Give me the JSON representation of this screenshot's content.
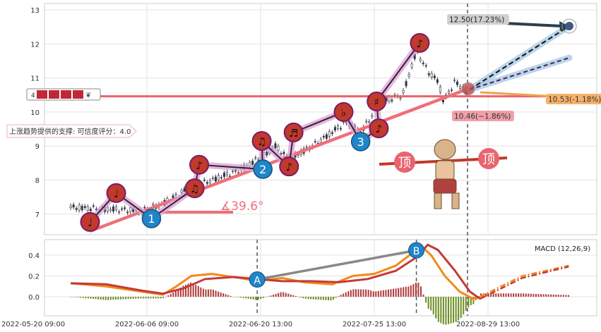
{
  "chart_data": {
    "type": "line",
    "x_unit": "axis-label index (0 = first date label)",
    "x_tick_labels": [
      "2022-05-20 09:00",
      "2022-06-06 09:00",
      "2022-06-20 13:00",
      "2022-07-25 13:00",
      "2022-08-29 13:00"
    ],
    "price_panel": {
      "ylim": [
        6.4,
        13.2
      ],
      "y_ticks": [
        7,
        8,
        9,
        10,
        11,
        12,
        13
      ],
      "price_path": [
        [
          0.33,
          7.2
        ],
        [
          0.64,
          7.15
        ],
        [
          0.95,
          7.1
        ],
        [
          1.14,
          7.3
        ],
        [
          1.39,
          7.8
        ],
        [
          1.57,
          8.0
        ],
        [
          1.82,
          8.3
        ],
        [
          2.01,
          8.7
        ],
        [
          2.13,
          9.0
        ],
        [
          2.25,
          8.6
        ],
        [
          2.5,
          9.1
        ],
        [
          2.75,
          9.7
        ],
        [
          2.88,
          9.4
        ],
        [
          3.06,
          10.3
        ],
        [
          3.25,
          10.5
        ],
        [
          3.37,
          11.8
        ],
        [
          3.47,
          11.2
        ],
        [
          3.56,
          10.9
        ],
        [
          3.61,
          10.3
        ],
        [
          3.71,
          10.9
        ],
        [
          3.81,
          10.6
        ]
      ],
      "zigzag": [
        [
          0.5,
          6.77
        ],
        [
          0.73,
          7.62
        ],
        [
          1.04,
          6.87
        ],
        [
          1.42,
          7.76
        ],
        [
          1.46,
          8.45
        ],
        [
          2.02,
          8.32
        ],
        [
          2.01,
          9.15
        ],
        [
          2.25,
          8.4
        ],
        [
          2.29,
          9.4
        ],
        [
          2.73,
          10.0
        ],
        [
          2.88,
          9.13
        ],
        [
          3.04,
          9.52
        ],
        [
          3.02,
          10.31
        ],
        [
          3.4,
          12.03
        ]
      ],
      "markers": [
        {
          "t": 0.5,
          "p": 6.77,
          "kind": "note",
          "label": "♩"
        },
        {
          "t": 0.73,
          "p": 7.62,
          "kind": "note",
          "label": "♩"
        },
        {
          "t": 1.04,
          "p": 6.87,
          "kind": "num",
          "label": "1"
        },
        {
          "t": 1.46,
          "p": 8.45,
          "kind": "note",
          "label": "♪"
        },
        {
          "t": 1.42,
          "p": 7.76,
          "kind": "note",
          "label": "♫"
        },
        {
          "t": 2.01,
          "p": 9.15,
          "kind": "note",
          "label": "♫"
        },
        {
          "t": 2.02,
          "p": 8.32,
          "kind": "num",
          "label": "2"
        },
        {
          "t": 2.25,
          "p": 8.4,
          "kind": "note",
          "label": "♪"
        },
        {
          "t": 2.29,
          "p": 9.4,
          "kind": "note",
          "label": "♬"
        },
        {
          "t": 2.73,
          "p": 10.0,
          "kind": "note",
          "label": "♭"
        },
        {
          "t": 2.88,
          "p": 9.13,
          "kind": "num",
          "label": "3"
        },
        {
          "t": 3.04,
          "p": 9.52,
          "kind": "note",
          "label": "♪"
        },
        {
          "t": 3.02,
          "p": 10.31,
          "kind": "note",
          "label": "♯"
        },
        {
          "t": 3.4,
          "p": 12.03,
          "kind": "note",
          "label": "♪"
        }
      ],
      "support_level": 10.46,
      "trendline": [
        [
          0.5,
          6.5
        ],
        [
          3.84,
          10.7
        ]
      ],
      "angle_label": "∡39.6°",
      "support_label": "上涨趋势提供的支撑: 可信度评分：4.0",
      "rating_label": "4",
      "forecasts": [
        {
          "label": "12.50(17.23%)",
          "value": 12.5,
          "color": "#2c3e50"
        },
        {
          "label": "10.53(-1.18%)",
          "value": 10.53,
          "color": "#f0a860"
        },
        {
          "label": "10.46(−1.86%)",
          "value": 10.46,
          "color": "#f08080"
        }
      ],
      "top_label": "顶"
    },
    "macd_panel": {
      "title": "MACD (12,26,9)",
      "ylim": [
        -0.18,
        0.56
      ],
      "y_ticks": [
        0.0,
        0.2,
        0.4
      ],
      "y_tick_labels": [
        "0.0",
        "0.2",
        "0.4"
      ],
      "dif": [
        [
          0.33,
          0.13
        ],
        [
          0.64,
          0.1
        ],
        [
          0.95,
          0.05
        ],
        [
          1.14,
          0.02
        ],
        [
          1.26,
          0.1
        ],
        [
          1.39,
          0.2
        ],
        [
          1.57,
          0.22
        ],
        [
          1.82,
          0.18
        ],
        [
          1.97,
          0.15
        ],
        [
          2.19,
          0.18
        ],
        [
          2.38,
          0.14
        ],
        [
          2.63,
          0.12
        ],
        [
          2.81,
          0.2
        ],
        [
          3.0,
          0.22
        ],
        [
          3.19,
          0.3
        ],
        [
          3.31,
          0.4
        ],
        [
          3.4,
          0.5
        ],
        [
          3.5,
          0.4
        ],
        [
          3.62,
          0.2
        ],
        [
          3.75,
          0.05
        ],
        [
          3.87,
          -0.02
        ],
        [
          3.93,
          0.0
        ]
      ],
      "dif_projection": [
        [
          3.93,
          0.0
        ],
        [
          4.3,
          0.2
        ],
        [
          4.71,
          0.3
        ]
      ],
      "dea": [
        [
          0.33,
          0.13
        ],
        [
          0.64,
          0.12
        ],
        [
          0.95,
          0.06
        ],
        [
          1.14,
          0.03
        ],
        [
          1.32,
          0.08
        ],
        [
          1.51,
          0.17
        ],
        [
          1.76,
          0.19
        ],
        [
          1.97,
          0.17
        ],
        [
          2.19,
          0.15
        ],
        [
          2.44,
          0.15
        ],
        [
          2.69,
          0.14
        ],
        [
          2.94,
          0.17
        ],
        [
          3.19,
          0.25
        ],
        [
          3.37,
          0.38
        ],
        [
          3.47,
          0.5
        ],
        [
          3.56,
          0.45
        ],
        [
          3.71,
          0.25
        ],
        [
          3.84,
          0.05
        ],
        [
          3.93,
          -0.02
        ]
      ],
      "dea_projection": [
        [
          3.93,
          -0.02
        ],
        [
          4.3,
          0.18
        ],
        [
          4.71,
          0.29
        ]
      ],
      "points": [
        {
          "label": "A",
          "t": 1.97,
          "v": 0.18
        },
        {
          "label": "B",
          "t": 3.37,
          "v": 0.46
        }
      ]
    }
  }
}
